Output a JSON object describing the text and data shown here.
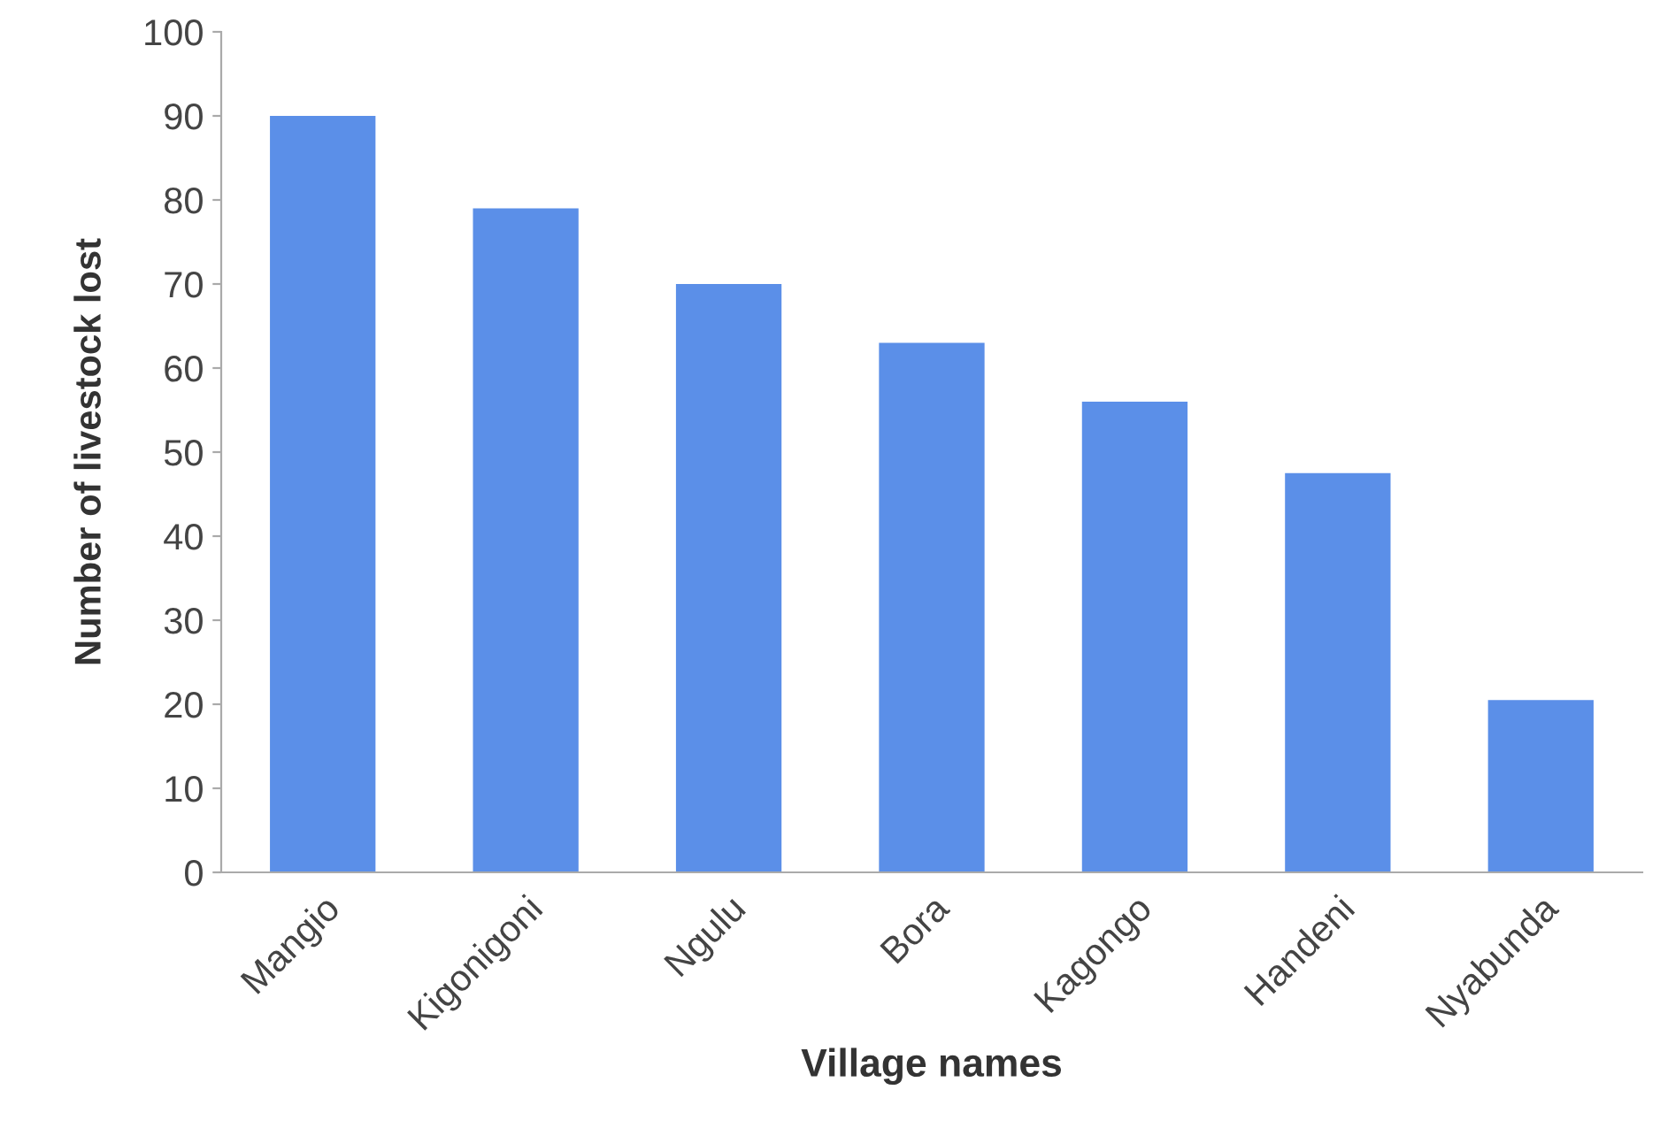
{
  "chart_data": {
    "type": "bar",
    "xlabel": "Village names",
    "ylabel": "Number of livestock lost",
    "categories": [
      "Mangio",
      "Kigonigoni",
      "Ngulu",
      "Bora",
      "Kagongo",
      "Handeni",
      "Nyabunda"
    ],
    "values": [
      90,
      79,
      70,
      63,
      56,
      47.5,
      20.5
    ],
    "color": "#5b8fe8",
    "ylim": [
      0,
      100
    ],
    "yticks": [
      0,
      10,
      20,
      30,
      40,
      50,
      60,
      70,
      80,
      90,
      100
    ],
    "grid": false,
    "legend": false
  }
}
